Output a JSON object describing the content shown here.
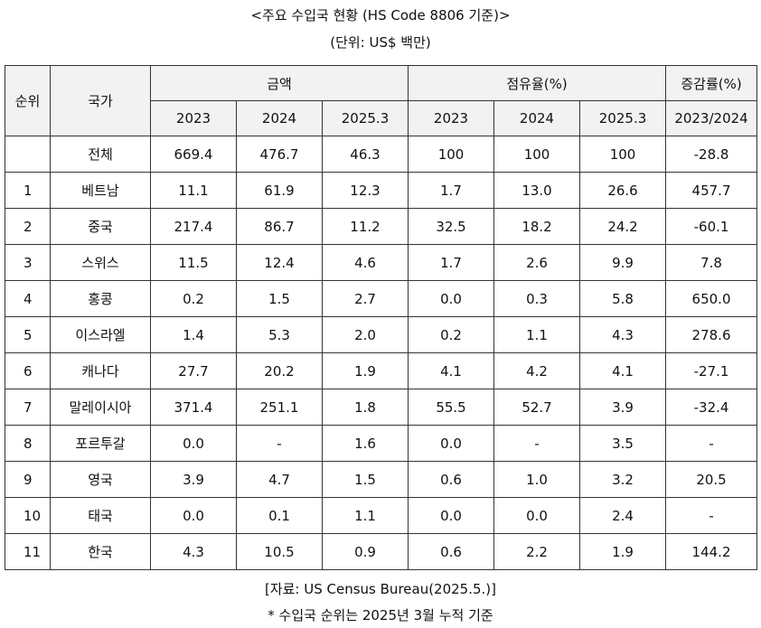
{
  "title": "<주요 수입국 현황 (HS Code 8806 기준)>",
  "unit": "(단위: US$ 백만)",
  "table": {
    "headers": {
      "rank": "순위",
      "country": "국가",
      "amount": "금액",
      "share": "점유율(%)",
      "change": "증감률(%)",
      "amount_years": [
        "2023",
        "2024",
        "2025.3"
      ],
      "share_years": [
        "2023",
        "2024",
        "2025.3"
      ],
      "change_period": "2023/2024"
    },
    "rows": [
      {
        "rank": "",
        "country": "전체",
        "amount": [
          "669.4",
          "476.7",
          "46.3"
        ],
        "share": [
          "100",
          "100",
          "100"
        ],
        "change": "-28.8"
      },
      {
        "rank": "1",
        "country": "베트남",
        "amount": [
          "11.1",
          "61.9",
          "12.3"
        ],
        "share": [
          "1.7",
          "13.0",
          "26.6"
        ],
        "change": "457.7"
      },
      {
        "rank": "2",
        "country": "중국",
        "amount": [
          "217.4",
          "86.7",
          "11.2"
        ],
        "share": [
          "32.5",
          "18.2",
          "24.2"
        ],
        "change": "-60.1"
      },
      {
        "rank": "3",
        "country": "스위스",
        "amount": [
          "11.5",
          "12.4",
          "4.6"
        ],
        "share": [
          "1.7",
          "2.6",
          "9.9"
        ],
        "change": "7.8"
      },
      {
        "rank": "4",
        "country": "홍콩",
        "amount": [
          "0.2",
          "1.5",
          "2.7"
        ],
        "share": [
          "0.0",
          "0.3",
          "5.8"
        ],
        "change": "650.0"
      },
      {
        "rank": "5",
        "country": "이스라엘",
        "amount": [
          "1.4",
          "5.3",
          "2.0"
        ],
        "share": [
          "0.2",
          "1.1",
          "4.3"
        ],
        "change": "278.6"
      },
      {
        "rank": "6",
        "country": "캐나다",
        "amount": [
          "27.7",
          "20.2",
          "1.9"
        ],
        "share": [
          "4.1",
          "4.2",
          "4.1"
        ],
        "change": "-27.1"
      },
      {
        "rank": "7",
        "country": "말레이시아",
        "amount": [
          "371.4",
          "251.1",
          "1.8"
        ],
        "share": [
          "55.5",
          "52.7",
          "3.9"
        ],
        "change": "-32.4"
      },
      {
        "rank": "8",
        "country": "포르투갈",
        "amount": [
          "0.0",
          "-",
          "1.6"
        ],
        "share": [
          "0.0",
          "-",
          "3.5"
        ],
        "change": "-"
      },
      {
        "rank": "9",
        "country": "영국",
        "amount": [
          "3.9",
          "4.7",
          "1.5"
        ],
        "share": [
          "0.6",
          "1.0",
          "3.2"
        ],
        "change": "20.5"
      },
      {
        "rank": "10",
        "country": "태국",
        "amount": [
          "0.0",
          "0.1",
          "1.1"
        ],
        "share": [
          "0.0",
          "0.0",
          "2.4"
        ],
        "change": "-"
      },
      {
        "rank": "11",
        "country": "한국",
        "amount": [
          "4.3",
          "10.5",
          "0.9"
        ],
        "share": [
          "0.6",
          "2.2",
          "1.9"
        ],
        "change": "144.2"
      }
    ]
  },
  "source": "[자료: US Census Bureau(2025.5.)]",
  "note": "* 수입국 순위는 2025년 3월 누적 기준"
}
